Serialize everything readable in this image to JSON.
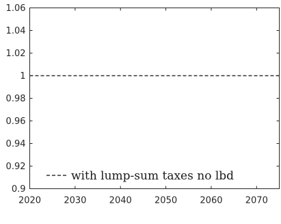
{
  "chart_data": {
    "type": "line",
    "title": "",
    "xlabel": "",
    "ylabel": "",
    "xlim": [
      2020,
      2075
    ],
    "ylim": [
      0.9,
      1.06
    ],
    "xticks": [
      2020,
      2030,
      2040,
      2050,
      2060,
      2070
    ],
    "yticks": [
      0.9,
      0.92,
      0.94,
      0.96,
      0.98,
      1,
      1.02,
      1.04,
      1.06
    ],
    "xtick_labels": [
      "2020",
      "2030",
      "2040",
      "2050",
      "2060",
      "2070"
    ],
    "ytick_labels": [
      "0.9",
      "0.92",
      "0.94",
      "0.96",
      "0.98",
      "1",
      "1.02",
      "1.04",
      "1.06"
    ],
    "grid": false,
    "legend_position": "bottom",
    "series": [
      {
        "name": "with lump-sum taxes no lbd",
        "style": "dashed",
        "color": "#333333",
        "x": [
          2020,
          2075
        ],
        "y": [
          1,
          1
        ]
      }
    ]
  }
}
